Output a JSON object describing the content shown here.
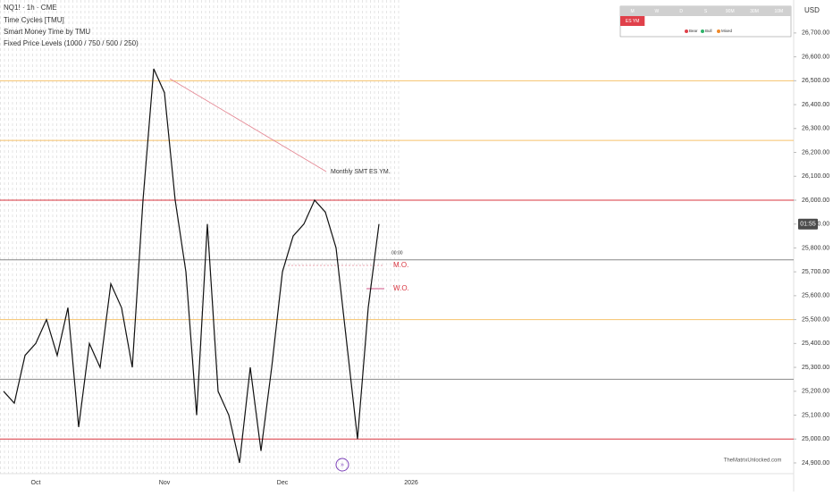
{
  "chart_data": {
    "type": "line",
    "title": "NQ1! · 1h · CME",
    "indicators": [
      "Time Cycles [TMU]",
      "Smart Money Time by TMU",
      "Fixed Price Levels (1000 / 750 / 500 / 250)"
    ],
    "currency": "USD",
    "categories": [
      null,
      null,
      null,
      "Oct",
      null,
      null,
      null,
      null,
      null,
      null,
      null,
      null,
      null,
      null,
      null,
      "Nov",
      null,
      null,
      null,
      null,
      null,
      null,
      null,
      null,
      null,
      null,
      "Dec",
      null,
      null,
      null,
      null,
      null,
      null,
      null,
      null,
      null,
      null,
      null,
      "2026"
    ],
    "series": [
      {
        "color": "#111111",
        "values": [
          25200,
          25150,
          25350,
          25400,
          25500,
          25350,
          25550,
          25050,
          25400,
          25300,
          25650,
          25550,
          25300,
          26000,
          26550,
          26450,
          26000,
          25700,
          25100,
          25900,
          25200,
          25100,
          24900,
          25300,
          24950,
          25300,
          25700,
          25850,
          25900,
          26000,
          25950,
          25800,
          25400,
          25000,
          25550,
          25900,
          null,
          null,
          null
        ]
      }
    ],
    "ylim": [
      24855,
      26838
    ],
    "yticks": [
      {
        "value": 24900,
        "label": "24,900.00"
      },
      {
        "value": 25000,
        "label": "25,000.00"
      },
      {
        "value": 25100,
        "label": "25,100.00"
      },
      {
        "value": 25200,
        "label": "25,200.00"
      },
      {
        "value": 25300,
        "label": "25,300.00"
      },
      {
        "value": 25400,
        "label": "25,400.00"
      },
      {
        "value": 25500,
        "label": "25,500.00"
      },
      {
        "value": 25600,
        "label": "25,600.00"
      },
      {
        "value": 25700,
        "label": "25,700.00"
      },
      {
        "value": 25800,
        "label": "25,800.00"
      },
      {
        "value": 25900,
        "label": "25,900.00"
      },
      {
        "value": 26000,
        "label": "26,000.00"
      },
      {
        "value": 26100,
        "label": "26,100.00"
      },
      {
        "value": 26200,
        "label": "26,200.00"
      },
      {
        "value": 26300,
        "label": "26,300.00"
      },
      {
        "value": 26400,
        "label": "26,400.00"
      },
      {
        "value": 26500,
        "label": "26,500.00"
      },
      {
        "value": 26600,
        "label": "26,600.00"
      },
      {
        "value": 26700,
        "label": "26,700.00"
      }
    ],
    "levels": [
      {
        "value": 26500,
        "color": "#f6c26b"
      },
      {
        "value": 26250,
        "color": "#f6c26b"
      },
      {
        "value": 26000,
        "color": "#d8343f"
      },
      {
        "value": 25750,
        "color": "#888888"
      },
      {
        "value": 25500,
        "color": "#f6c26b"
      },
      {
        "value": 25250,
        "color": "#888888"
      },
      {
        "value": 25000,
        "color": "#d8343f"
      }
    ],
    "price_tag": "01:55",
    "annotations": {
      "smt": "Monthly SMT ES YM.",
      "time": "00:00",
      "mo": "M.O.",
      "wo": "W.O."
    },
    "table": {
      "headers": [
        "M",
        "W",
        "D",
        "S",
        "90M",
        "30M",
        "10M"
      ],
      "cell": "ES YM",
      "legend": [
        {
          "name": "Bear",
          "color": "#e0404a"
        },
        {
          "name": "Bull",
          "color": "#2fb36a"
        },
        {
          "name": "Mixed",
          "color": "#f08a2a"
        }
      ]
    },
    "watermark": "TheMatrixUnlocked.com"
  }
}
